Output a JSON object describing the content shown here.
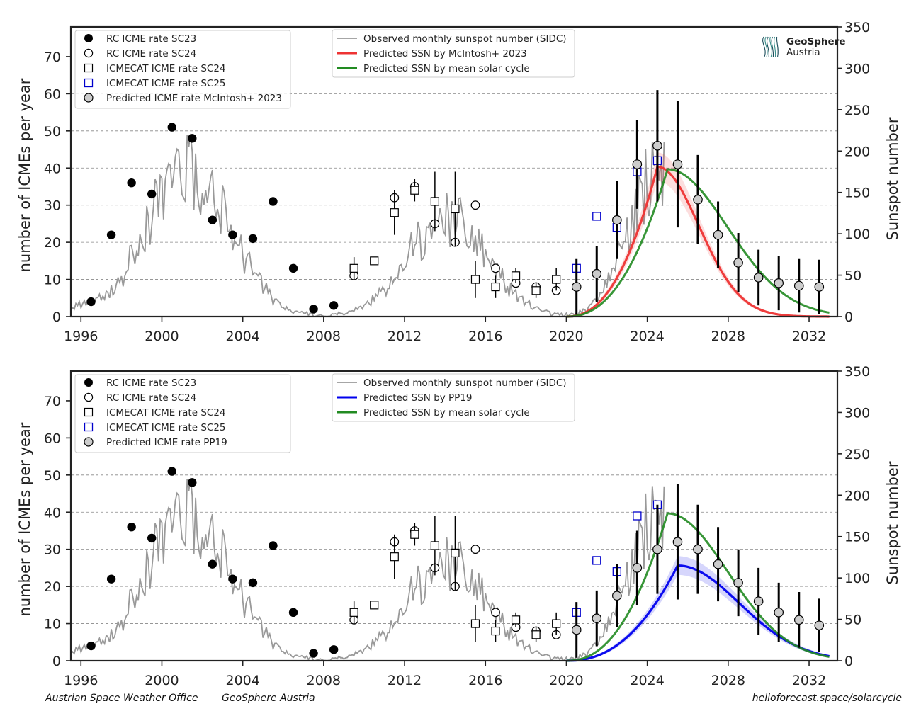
{
  "footer": {
    "left1": "Austrian Space Weather Office",
    "left2": "GeoSphere Austria",
    "right": "helioforecast.space/solarcycle"
  },
  "logo": {
    "line1": "GeoSphere",
    "line2": "Austria"
  },
  "colors": {
    "sunspot_observed": "#999999",
    "mcintosh": "#ee3333",
    "pp19": "#0000ee",
    "mean_cycle": "#228b22",
    "icmecat_sc25": "#0000cc",
    "predicted_marker": "#cccccc",
    "grid": "#888888"
  },
  "chart_data": [
    {
      "type": "scatter",
      "panel": "top",
      "ylabel": "number of ICMEs per year",
      "y2label": "Sunspot number",
      "xlim": [
        1995.5,
        2033.4
      ],
      "ylim": [
        0,
        78
      ],
      "y2lim": [
        0,
        350
      ],
      "xticks": [
        "1996",
        "2000",
        "2004",
        "2008",
        "2012",
        "2016",
        "2020",
        "2024",
        "2028",
        "2032"
      ],
      "yticks": [
        "0",
        "10",
        "20",
        "30",
        "40",
        "50",
        "60",
        "70"
      ],
      "y2ticks": [
        "0",
        "50",
        "100",
        "150",
        "200",
        "250",
        "300",
        "350"
      ],
      "grid": "horizontal dashed at 10,20,30,40,50,60",
      "legend_markers": {
        "placement": "top-left",
        "entries": [
          "RC ICME rate SC23",
          "RC ICME rate SC24",
          "ICMECAT ICME rate SC24",
          "ICMECAT ICME rate SC25",
          "Predicted ICME rate McIntosh+ 2023"
        ]
      },
      "legend_lines": {
        "placement": "top-center",
        "entries": [
          "Observed monthly sunspot number (SIDC)",
          "Predicted SSN by McIntosh+ 2023",
          "Predicted SSN by mean solar cycle"
        ]
      },
      "series": [
        {
          "name": "RC ICME rate SC23",
          "marker": "filled-circle",
          "x": [
            1996.5,
            1997.5,
            1998.5,
            1999.5,
            2000.5,
            2001.5,
            2002.5,
            2003.5,
            2004.5,
            2005.5,
            2006.5,
            2007.5,
            2008.5
          ],
          "y": [
            4,
            22,
            36,
            33,
            51,
            48,
            26,
            22,
            21,
            31,
            13,
            2,
            3
          ]
        },
        {
          "name": "RC ICME rate SC24",
          "marker": "open-circle",
          "x": [
            2009.5,
            2011.5,
            2012.5,
            2013.5,
            2014.5,
            2015.5,
            2016.5,
            2017.5,
            2018.5,
            2019.5
          ],
          "y": [
            11,
            32,
            35,
            25,
            20,
            30,
            13,
            9,
            8,
            7
          ]
        },
        {
          "name": "ICMECAT ICME rate SC24",
          "marker": "open-square",
          "x": [
            2009.5,
            2010.5,
            2011.5,
            2012.5,
            2013.5,
            2014.5,
            2015.5,
            2016.5,
            2017.5,
            2018.5,
            2019.5
          ],
          "y": [
            13,
            15,
            28,
            34,
            31,
            29,
            10,
            8,
            11,
            7,
            10
          ],
          "err": [
            3,
            1,
            6,
            3,
            8,
            10,
            5,
            3,
            2,
            2,
            3
          ]
        },
        {
          "name": "ICMECAT ICME rate SC25",
          "marker": "open-square-blue",
          "x": [
            2020.5,
            2021.5,
            2022.5,
            2023.5,
            2024.5
          ],
          "y": [
            13,
            27,
            24,
            39,
            42
          ]
        },
        {
          "name": "Predicted ICME rate McIntosh+ 2023",
          "marker": "grey-circle",
          "x": [
            2020.5,
            2021.5,
            2022.5,
            2023.5,
            2024.5,
            2025.5,
            2026.5,
            2027.5,
            2028.5,
            2029.5,
            2030.5,
            2031.5,
            2032.5
          ],
          "y": [
            8,
            11.5,
            26,
            41,
            46,
            41,
            31.5,
            22,
            14.5,
            10.5,
            9,
            8.3,
            8
          ],
          "err": [
            7.5,
            7.5,
            10.5,
            12,
            15,
            17,
            12,
            9,
            8,
            7.5,
            7.3,
            7.2,
            7.3
          ]
        },
        {
          "name": "Predicted SSN by McIntosh+ 2023",
          "axis": "right",
          "line": "red",
          "peak_x": 2024.5,
          "peak_y": 181,
          "start_x": 2020.0,
          "end_x": 2033.0
        },
        {
          "name": "Predicted SSN by mean solar cycle",
          "axis": "right",
          "line": "green",
          "peak_x": 2025.0,
          "peak_y": 178,
          "start_x": 2020.0,
          "end_x": 2033.0
        },
        {
          "name": "Observed monthly sunspot number (SIDC)",
          "axis": "right",
          "line": "grey",
          "x_range": [
            1995.5,
            2024.9
          ]
        }
      ]
    },
    {
      "type": "scatter",
      "panel": "bottom",
      "ylabel": "number of ICMEs per year",
      "y2label": "Sunspot number",
      "xlim": [
        1995.5,
        2033.4
      ],
      "ylim": [
        0,
        78
      ],
      "y2lim": [
        0,
        350
      ],
      "xticks": [
        "1996",
        "2000",
        "2004",
        "2008",
        "2012",
        "2016",
        "2020",
        "2024",
        "2028",
        "2032"
      ],
      "yticks": [
        "0",
        "10",
        "20",
        "30",
        "40",
        "50",
        "60",
        "70"
      ],
      "y2ticks": [
        "0",
        "50",
        "100",
        "150",
        "200",
        "250",
        "300",
        "350"
      ],
      "grid": "horizontal dashed at 10,20,30,40,50,60",
      "legend_markers": {
        "placement": "top-left",
        "entries": [
          "RC ICME rate SC23",
          "RC ICME rate SC24",
          "ICMECAT ICME rate SC24",
          "ICMECAT ICME rate SC25",
          "Predicted ICME rate PP19"
        ]
      },
      "legend_lines": {
        "placement": "top-center",
        "entries": [
          "Observed monthly sunspot number (SIDC)",
          "Predicted SSN by PP19",
          "Predicted SSN by mean solar cycle"
        ]
      },
      "series": [
        {
          "name": "RC ICME rate SC23",
          "marker": "filled-circle",
          "x": [
            1996.5,
            1997.5,
            1998.5,
            1999.5,
            2000.5,
            2001.5,
            2002.5,
            2003.5,
            2004.5,
            2005.5,
            2006.5,
            2007.5,
            2008.5
          ],
          "y": [
            4,
            22,
            36,
            33,
            51,
            48,
            26,
            22,
            21,
            31,
            13,
            2,
            3
          ]
        },
        {
          "name": "RC ICME rate SC24",
          "marker": "open-circle",
          "x": [
            2009.5,
            2011.5,
            2012.5,
            2013.5,
            2014.5,
            2015.5,
            2016.5,
            2017.5,
            2018.5,
            2019.5
          ],
          "y": [
            11,
            32,
            35,
            25,
            20,
            30,
            13,
            9,
            8,
            7
          ]
        },
        {
          "name": "ICMECAT ICME rate SC24",
          "marker": "open-square",
          "x": [
            2009.5,
            2010.5,
            2011.5,
            2012.5,
            2013.5,
            2014.5,
            2015.5,
            2016.5,
            2017.5,
            2018.5,
            2019.5
          ],
          "y": [
            13,
            15,
            28,
            34,
            31,
            29,
            10,
            8,
            11,
            7,
            10
          ],
          "err": [
            3,
            1,
            6,
            3,
            8,
            10,
            5,
            3,
            2,
            2,
            3
          ]
        },
        {
          "name": "ICMECAT ICME rate SC25",
          "marker": "open-square-blue",
          "x": [
            2020.5,
            2021.5,
            2022.5,
            2023.5,
            2024.5
          ],
          "y": [
            13,
            27,
            24,
            39,
            42
          ]
        },
        {
          "name": "Predicted ICME rate PP19",
          "marker": "grey-circle",
          "x": [
            2020.5,
            2021.5,
            2022.5,
            2023.5,
            2024.5,
            2025.5,
            2026.5,
            2027.5,
            2028.5,
            2029.5,
            2030.5,
            2031.5,
            2032.5
          ],
          "y": [
            8.3,
            11.4,
            17.5,
            25,
            30,
            32,
            30,
            26,
            21,
            16,
            13,
            11,
            9.5
          ],
          "err": [
            7.5,
            7.5,
            8.5,
            10,
            12,
            15.5,
            12,
            10,
            9,
            9,
            8,
            7.5,
            7.2
          ]
        },
        {
          "name": "Predicted SSN by PP19",
          "axis": "right",
          "line": "blue",
          "peak_x": 2025.5,
          "peak_y": 115,
          "start_x": 2020.0,
          "end_x": 2033.0
        },
        {
          "name": "Predicted SSN by mean solar cycle",
          "axis": "right",
          "line": "green",
          "peak_x": 2025.0,
          "peak_y": 178,
          "start_x": 2020.0,
          "end_x": 2033.0
        },
        {
          "name": "Observed monthly sunspot number (SIDC)",
          "axis": "right",
          "line": "grey",
          "x_range": [
            1995.5,
            2024.9
          ]
        }
      ]
    }
  ]
}
